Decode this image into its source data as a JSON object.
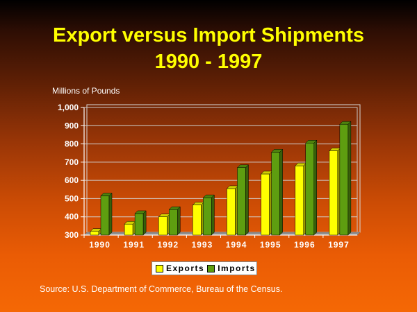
{
  "title_line1": "Export versus Import Shipments",
  "title_line2": "1990 - 1997",
  "source": "Source: U.S. Department of Commerce, Bureau of the Census.",
  "colors": {
    "title": "#ffff00",
    "exports": "#ffff00",
    "imports": "#5e9e10"
  },
  "chart_data": {
    "type": "bar",
    "title": "Export versus Import Shipments 1990 - 1997",
    "xlabel": "",
    "ylabel": "Millions of Pounds",
    "categories": [
      "1990",
      "1991",
      "1992",
      "1993",
      "1994",
      "1995",
      "1996",
      "1997"
    ],
    "yticks": [
      "1,000",
      "900",
      "800",
      "700",
      "600",
      "500",
      "400",
      "300"
    ],
    "ylim": [
      300,
      1000
    ],
    "grid": true,
    "legend_position": "bottom",
    "series": [
      {
        "name": "Exports",
        "values": [
          320,
          360,
          400,
          465,
          555,
          635,
          680,
          762
        ]
      },
      {
        "name": "Imports",
        "values": [
          515,
          418,
          440,
          505,
          670,
          755,
          805,
          908
        ]
      }
    ]
  }
}
